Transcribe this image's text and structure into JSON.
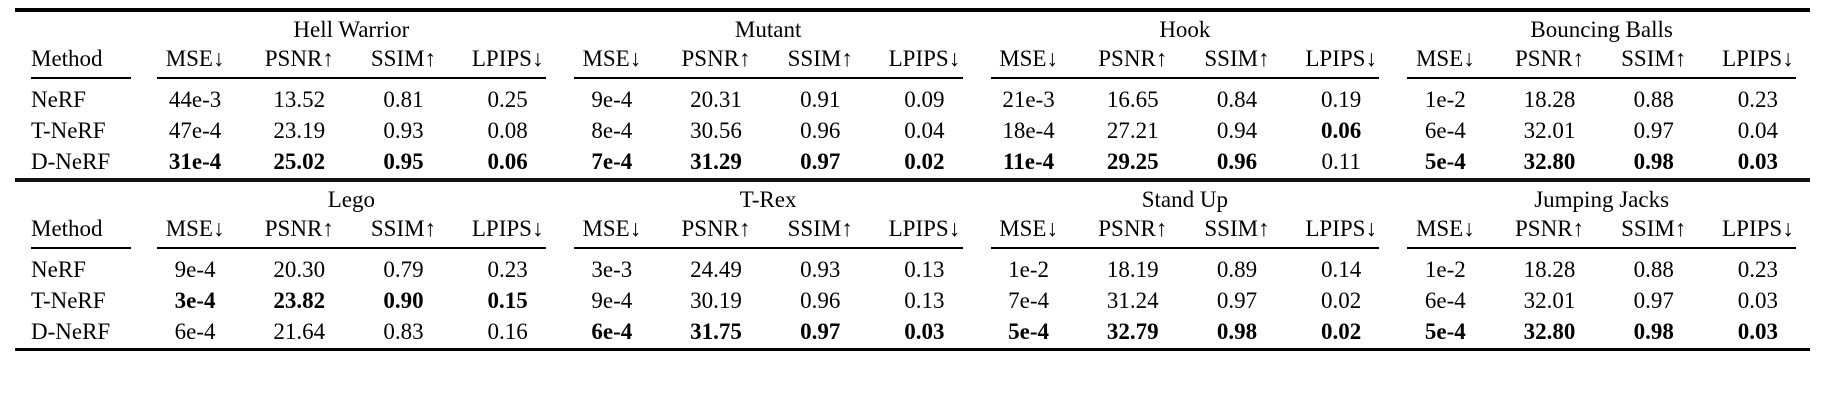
{
  "colors": {
    "text": "#000000",
    "background": "#ffffff",
    "rule": "#000000"
  },
  "table": {
    "method_header": "Method",
    "metrics": [
      "MSE↓",
      "PSNR↑",
      "SSIM↑",
      "LPIPS↓"
    ],
    "sections": [
      {
        "scenes": [
          "Hell Warrior",
          "Mutant",
          "Hook",
          "Bouncing Balls"
        ],
        "rows": [
          {
            "method": "NeRF",
            "values": [
              "44e-3",
              "13.52",
              "0.81",
              "0.25",
              "9e-4",
              "20.31",
              "0.91",
              "0.09",
              "21e-3",
              "16.65",
              "0.84",
              "0.19",
              "1e-2",
              "18.28",
              "0.88",
              "0.23"
            ],
            "bold": [
              0,
              0,
              0,
              0,
              0,
              0,
              0,
              0,
              0,
              0,
              0,
              0,
              0,
              0,
              0,
              0
            ]
          },
          {
            "method": "T-NeRF",
            "values": [
              "47e-4",
              "23.19",
              "0.93",
              "0.08",
              "8e-4",
              "30.56",
              "0.96",
              "0.04",
              "18e-4",
              "27.21",
              "0.94",
              "0.06",
              "6e-4",
              "32.01",
              "0.97",
              "0.04"
            ],
            "bold": [
              0,
              0,
              0,
              0,
              0,
              0,
              0,
              0,
              0,
              0,
              0,
              1,
              0,
              0,
              0,
              0
            ]
          },
          {
            "method": "D-NeRF",
            "values": [
              "31e-4",
              "25.02",
              "0.95",
              "0.06",
              "7e-4",
              "31.29",
              "0.97",
              "0.02",
              "11e-4",
              "29.25",
              "0.96",
              "0.11",
              "5e-4",
              "32.80",
              "0.98",
              "0.03"
            ],
            "bold": [
              1,
              1,
              1,
              1,
              1,
              1,
              1,
              1,
              1,
              1,
              1,
              0,
              1,
              1,
              1,
              1
            ]
          }
        ]
      },
      {
        "scenes": [
          "Lego",
          "T-Rex",
          "Stand Up",
          "Jumping Jacks"
        ],
        "rows": [
          {
            "method": "NeRF",
            "values": [
              "9e-4",
              "20.30",
              "0.79",
              "0.23",
              "3e-3",
              "24.49",
              "0.93",
              "0.13",
              "1e-2",
              "18.19",
              "0.89",
              "0.14",
              "1e-2",
              "18.28",
              "0.88",
              "0.23"
            ],
            "bold": [
              0,
              0,
              0,
              0,
              0,
              0,
              0,
              0,
              0,
              0,
              0,
              0,
              0,
              0,
              0,
              0
            ]
          },
          {
            "method": "T-NeRF",
            "values": [
              "3e-4",
              "23.82",
              "0.90",
              "0.15",
              "9e-4",
              "30.19",
              "0.96",
              "0.13",
              "7e-4",
              "31.24",
              "0.97",
              "0.02",
              "6e-4",
              "32.01",
              "0.97",
              "0.03"
            ],
            "bold": [
              1,
              1,
              1,
              1,
              0,
              0,
              0,
              0,
              0,
              0,
              0,
              0,
              0,
              0,
              0,
              0
            ]
          },
          {
            "method": "D-NeRF",
            "values": [
              "6e-4",
              "21.64",
              "0.83",
              "0.16",
              "6e-4",
              "31.75",
              "0.97",
              "0.03",
              "5e-4",
              "32.79",
              "0.98",
              "0.02",
              "5e-4",
              "32.80",
              "0.98",
              "0.03"
            ],
            "bold": [
              0,
              0,
              0,
              0,
              1,
              1,
              1,
              1,
              1,
              1,
              1,
              1,
              1,
              1,
              1,
              1
            ]
          }
        ]
      }
    ]
  }
}
